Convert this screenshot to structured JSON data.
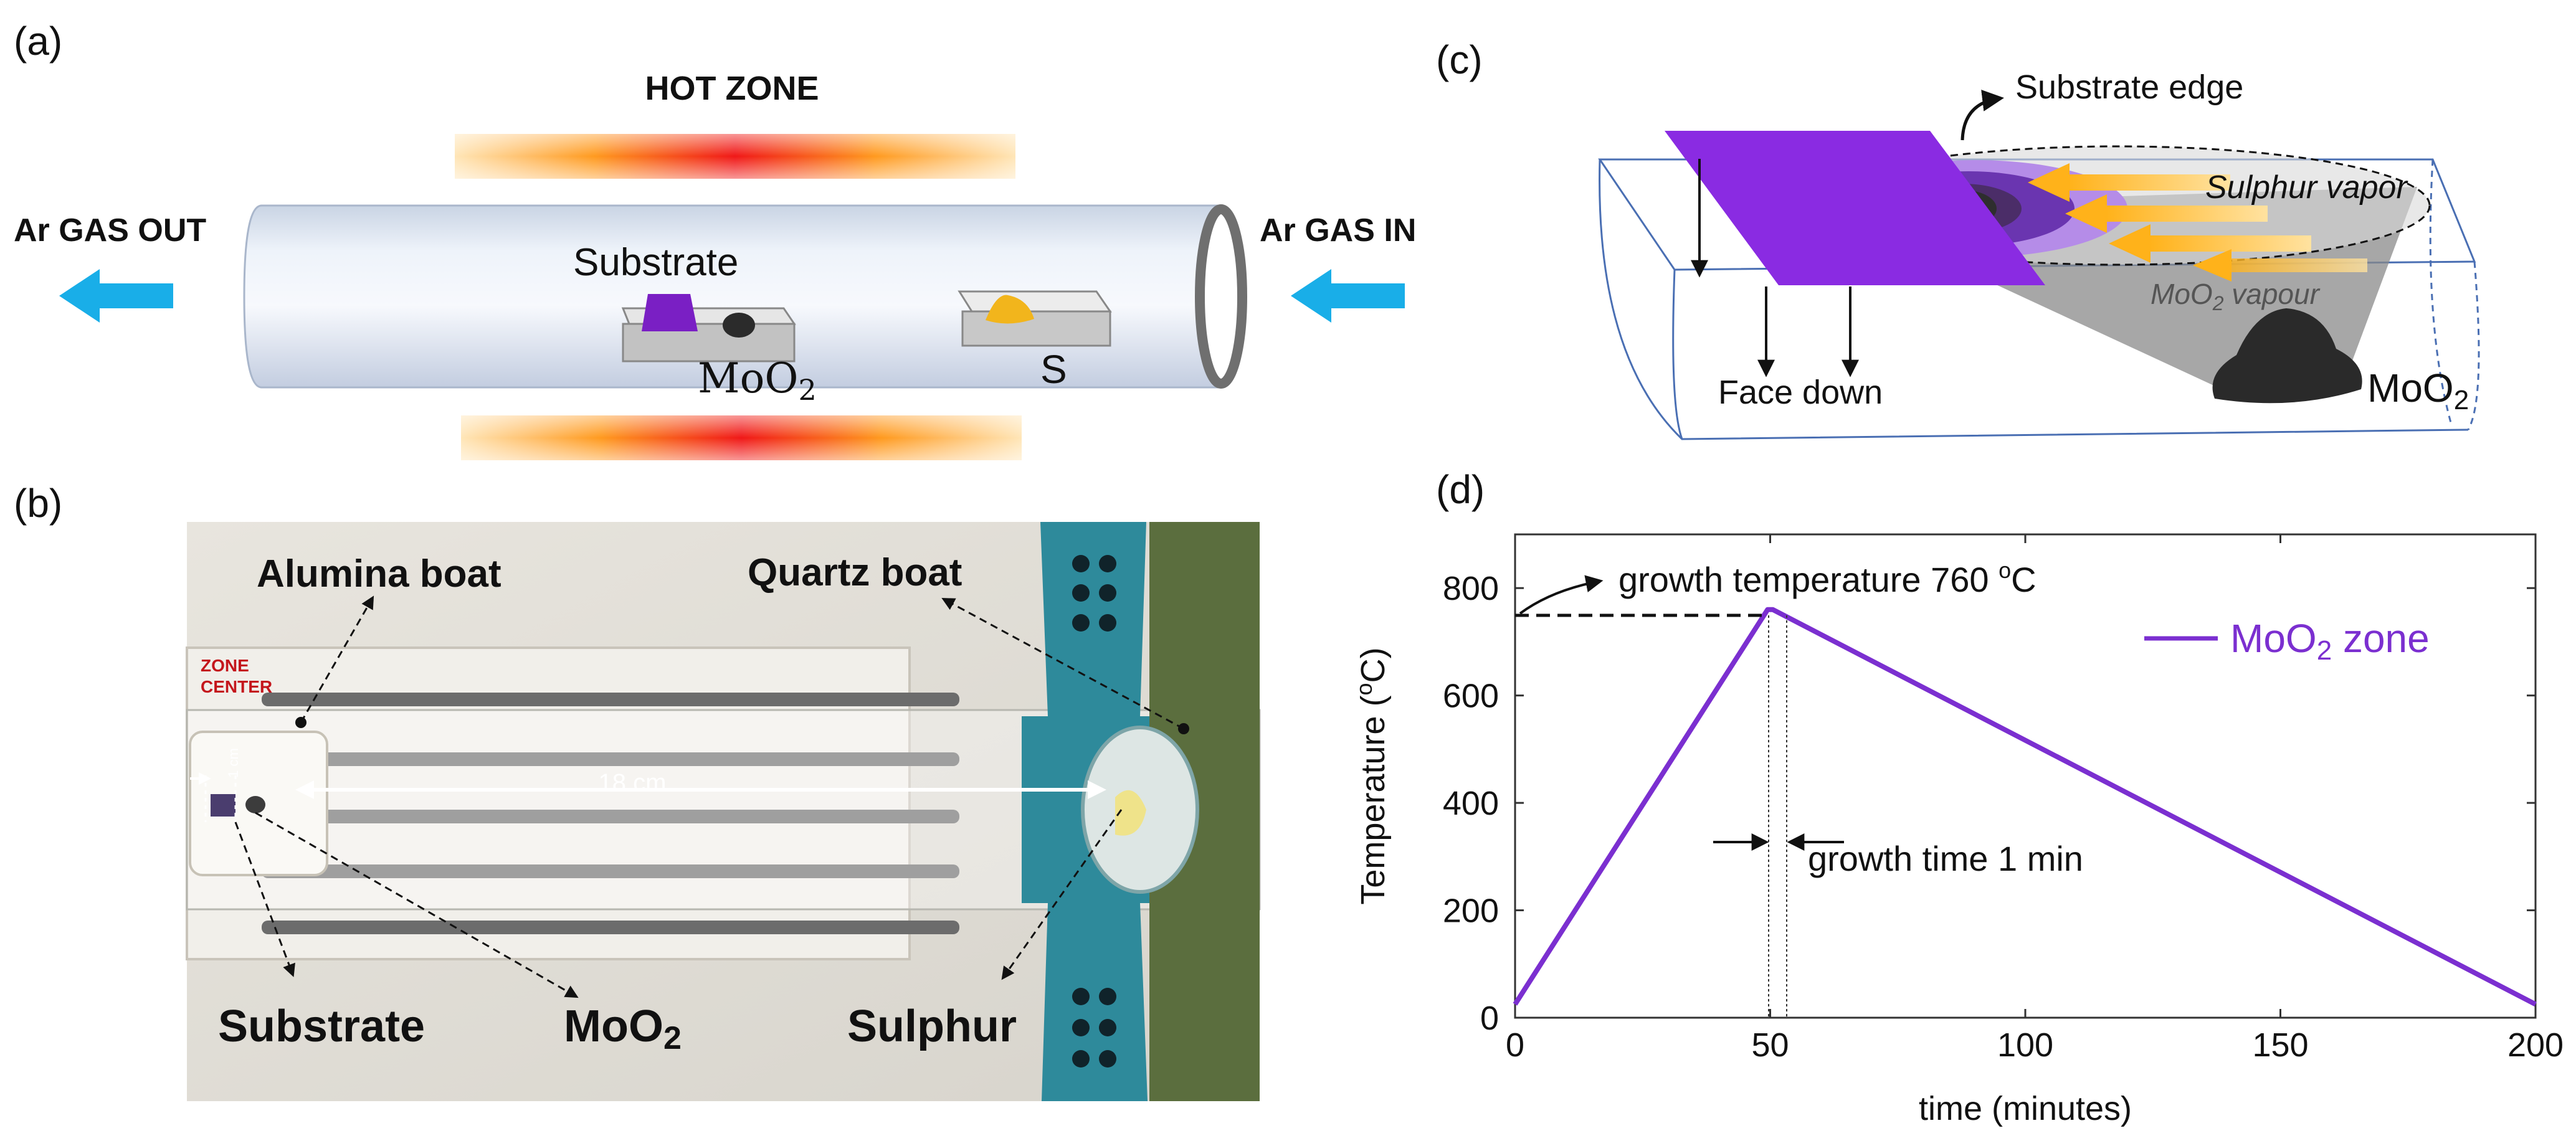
{
  "panel_a": {
    "label": "(a)",
    "hot_zone": "HOT ZONE",
    "gas_out": "Ar GAS OUT",
    "gas_in": "Ar GAS IN",
    "substrate": "Substrate",
    "moo2": "MoO",
    "moo2_sub": "2",
    "sulfur": "S"
  },
  "panel_b": {
    "label": "(b)",
    "alumina_boat": "Alumina boat",
    "quartz_boat": "Quartz boat",
    "zone_center_1": "ZONE",
    "zone_center_2": "CENTER",
    "distance": "18 cm",
    "scale": "1 cm",
    "substrate": "Substrate",
    "moo2": "MoO",
    "moo2_sub": "2",
    "sulphur": "Sulphur"
  },
  "panel_c": {
    "label": "(c)",
    "substrate_edge": "Substrate edge",
    "sulphur_vapor": "Sulphur vapor",
    "moo2_vapour_a": "MoO",
    "moo2_vapour_sub": "2",
    "moo2_vapour_b": " vapour",
    "face_down": "Face down",
    "moo2": "MoO",
    "moo2_sub": "2"
  },
  "panel_d": {
    "label": "(d)",
    "growth_temperature_a": "growth temperature 760 ",
    "growth_temperature_sup": "o",
    "growth_temperature_b": "C",
    "growth_time": "growth time 1 min"
  },
  "colors": {
    "line": "#7b2fd0",
    "purple": "#8a2be2",
    "arrow_blue": "#19aee8",
    "vapor_orange": "#ffb21a"
  },
  "chart_data": {
    "type": "line",
    "title": "",
    "xlabel": "time (minutes)",
    "ylabel_a": "Temperature (",
    "ylabel_sup": "o",
    "ylabel_b": "C)",
    "xlim": [
      0,
      200
    ],
    "ylim": [
      0,
      900
    ],
    "xticks": [
      0,
      50,
      100,
      150,
      200
    ],
    "yticks": [
      0,
      200,
      400,
      600,
      800
    ],
    "series": [
      {
        "name": "MoO",
        "name_sub": "2",
        "name_suffix": " zone",
        "x": [
          0,
          49.5,
          50.5,
          200
        ],
        "y": [
          25,
          760,
          760,
          25
        ]
      }
    ]
  }
}
